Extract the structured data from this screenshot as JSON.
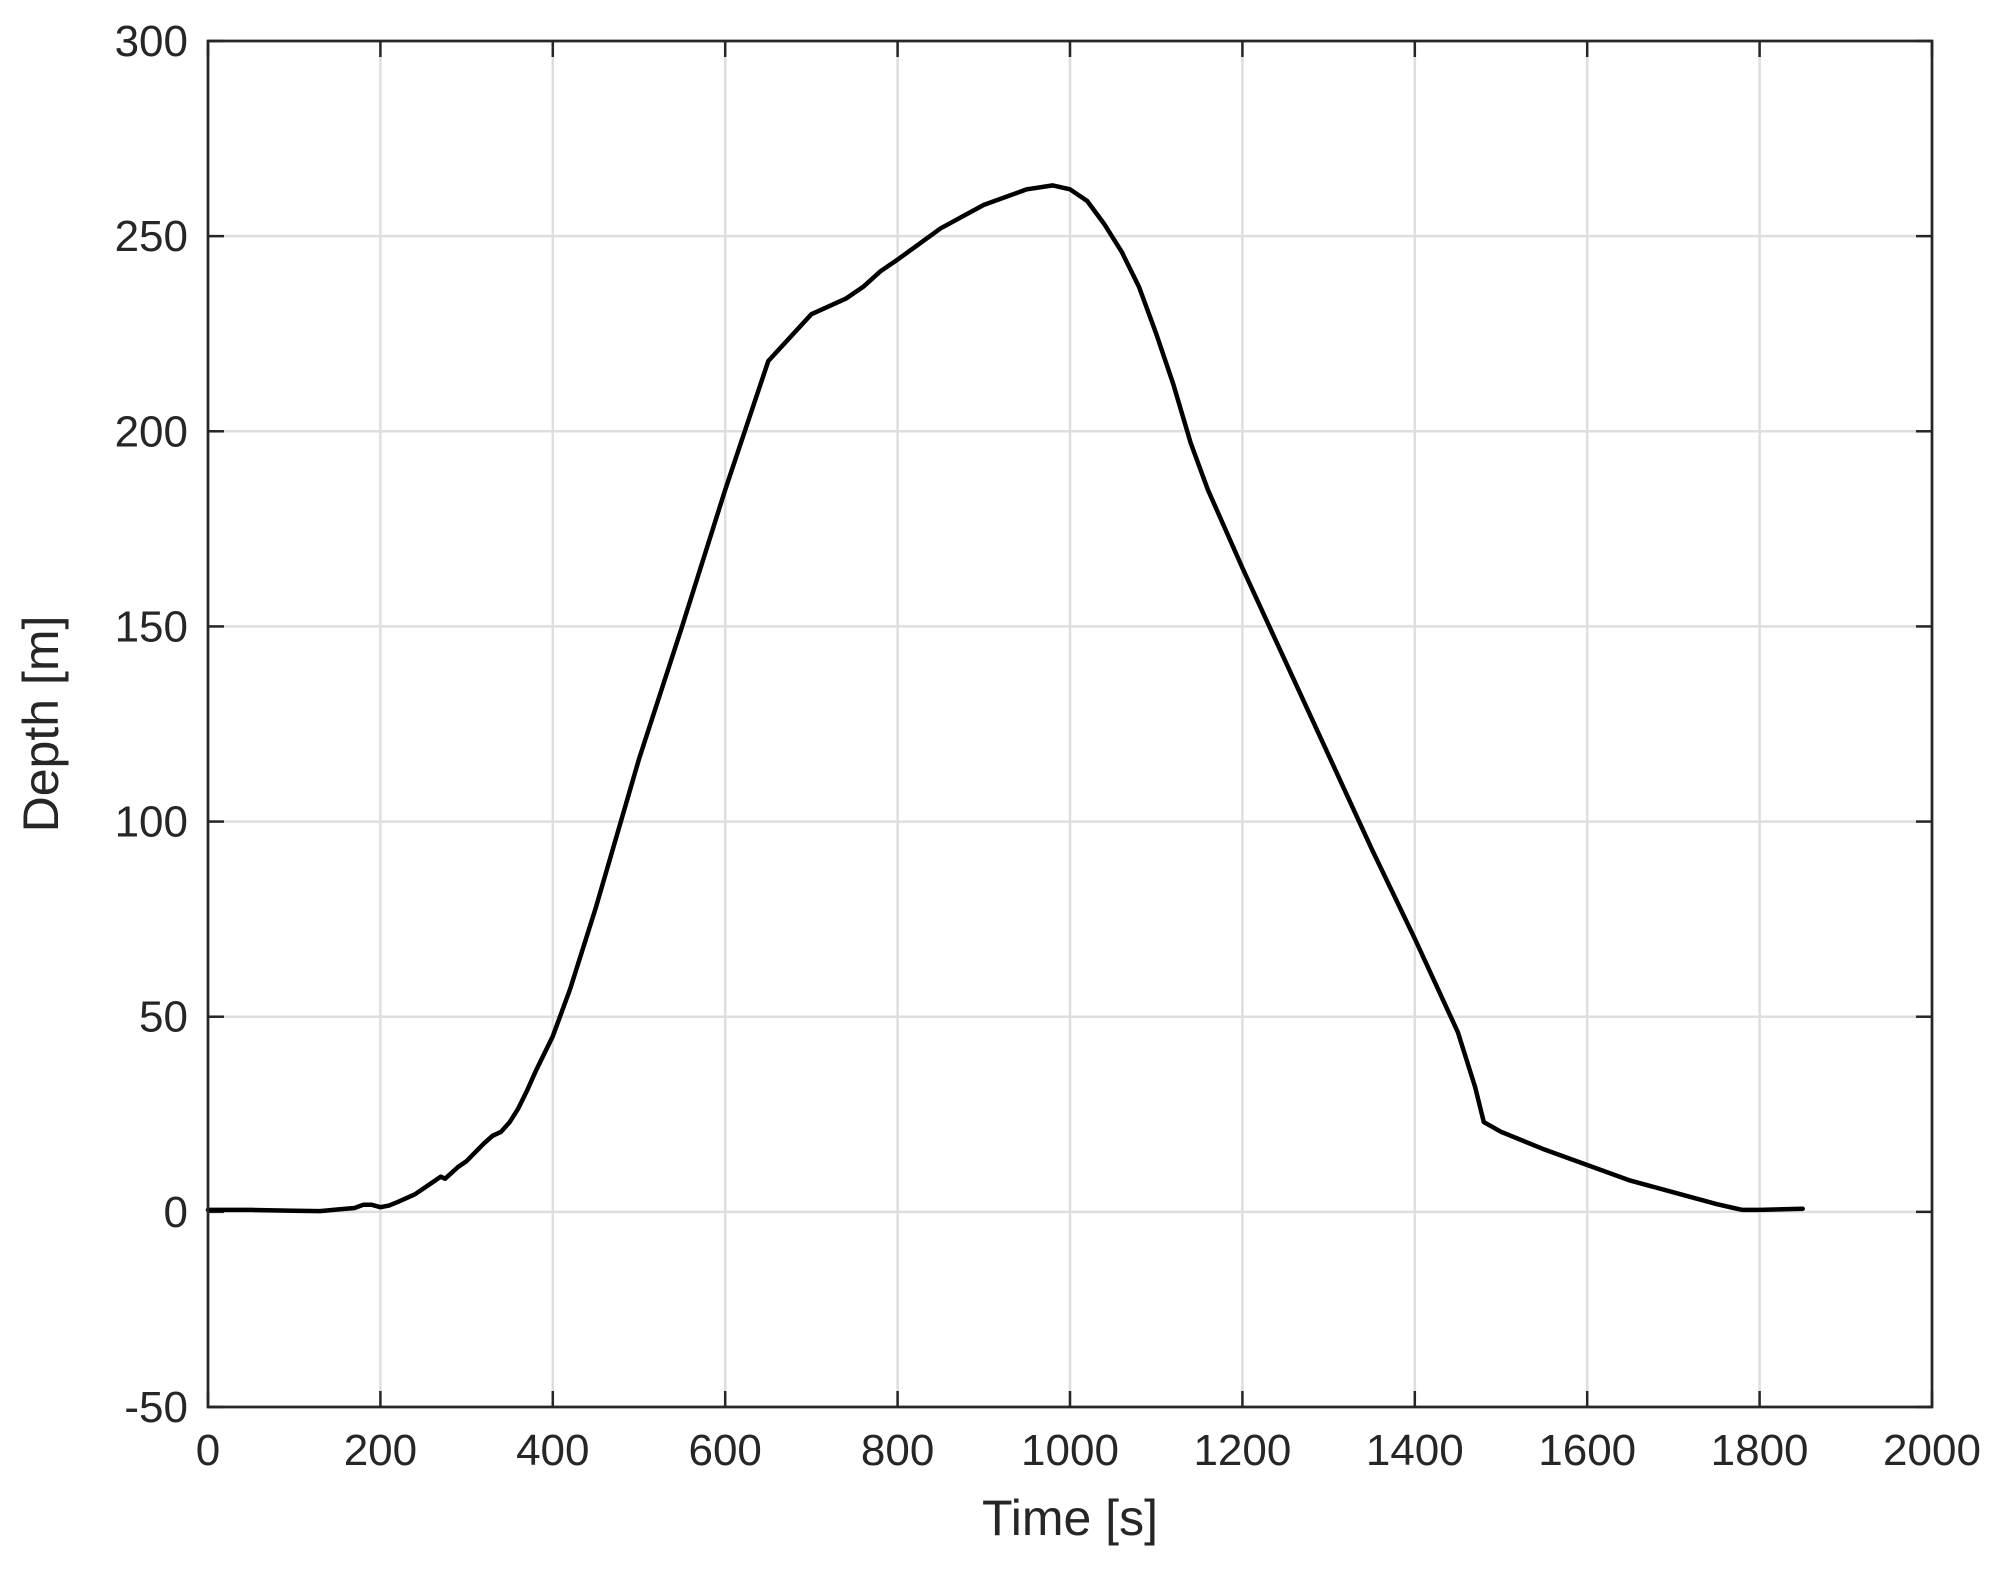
{
  "chart_data": {
    "type": "line",
    "title": "",
    "xlabel": "Time [s]",
    "ylabel": "Depth [m]",
    "xlim": [
      0,
      2000
    ],
    "ylim": [
      -50,
      300
    ],
    "xticks": [
      0,
      200,
      400,
      600,
      800,
      1000,
      1200,
      1400,
      1600,
      1800,
      2000
    ],
    "yticks": [
      -50,
      0,
      50,
      100,
      150,
      200,
      250,
      300
    ],
    "xtick_labels": [
      "0",
      "200",
      "400",
      "600",
      "800",
      "1000",
      "1200",
      "1400",
      "1600",
      "1800",
      "2000"
    ],
    "ytick_labels": [
      "-50",
      "0",
      "50",
      "100",
      "150",
      "200",
      "250",
      "300"
    ],
    "grid": true,
    "legend": "none",
    "colors": {
      "line": "#000000",
      "grid": "#dedede",
      "axes": "#262626"
    },
    "series": [
      {
        "x": [
          0,
          50,
          100,
          130,
          150,
          170,
          180,
          190,
          200,
          210,
          220,
          240,
          260,
          270,
          275,
          280,
          290,
          300,
          320,
          330,
          340,
          350,
          360,
          370,
          380,
          400,
          420,
          450,
          500,
          550,
          600,
          650,
          700,
          720,
          740,
          760,
          780,
          800,
          850,
          900,
          950,
          980,
          1000,
          1020,
          1040,
          1060,
          1080,
          1100,
          1120,
          1140,
          1160,
          1200,
          1250,
          1300,
          1350,
          1400,
          1450,
          1470,
          1480,
          1500,
          1550,
          1600,
          1650,
          1700,
          1750,
          1770,
          1780,
          1800,
          1850
        ],
        "y": [
          0.5,
          0.5,
          0.3,
          0.2,
          0.6,
          1.0,
          1.8,
          1.8,
          1.2,
          1.6,
          2.5,
          4.5,
          7.5,
          9.0,
          8.5,
          9.5,
          11.5,
          13.0,
          17.5,
          19.5,
          20.5,
          23.0,
          26.5,
          31.0,
          36.0,
          45.0,
          57.0,
          78.0,
          116.0,
          150.0,
          185.0,
          218.0,
          230.0,
          232.0,
          234.0,
          237.0,
          241.0,
          244.0,
          252.0,
          258.0,
          262.0,
          263.0,
          262.0,
          259.0,
          253.0,
          246.0,
          237.0,
          225.0,
          212.0,
          197.0,
          185.0,
          165.0,
          141.0,
          117.0,
          93.0,
          70.0,
          46.0,
          32.0,
          23.0,
          20.5,
          16.0,
          12.0,
          8.0,
          5.0,
          2.0,
          1.0,
          0.5,
          0.5,
          0.8
        ]
      }
    ]
  }
}
